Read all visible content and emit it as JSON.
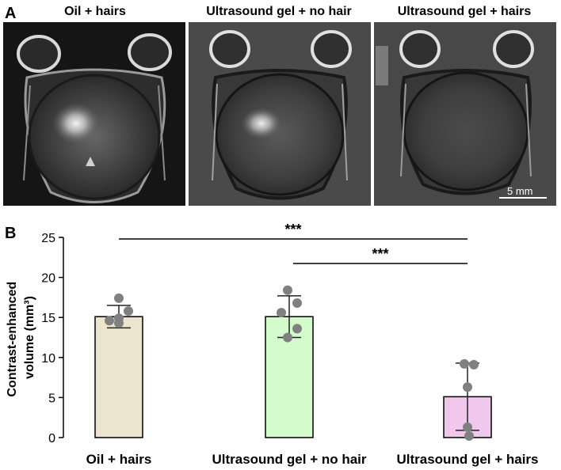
{
  "panels": {
    "a_label": "A",
    "b_label": "B"
  },
  "images": [
    {
      "title": "Oil + hairs"
    },
    {
      "title": "Ultrasound gel + no hair"
    },
    {
      "title": "Ultrasound gel + hairs"
    }
  ],
  "scalebar": {
    "label": "5 mm"
  },
  "chart_data": {
    "type": "bar",
    "categories": [
      "Oil + hairs",
      "Ultrasound gel + no hair",
      "Ultrasound gel + hairs"
    ],
    "values": [
      15.1,
      15.1,
      5.1
    ],
    "error": [
      1.4,
      2.6,
      4.2
    ],
    "points": [
      [
        17.4,
        15.8,
        14.9,
        14.6,
        14.3
      ],
      [
        18.4,
        16.8,
        15.6,
        13.6,
        12.5
      ],
      [
        9.2,
        9.1,
        6.3,
        1.3,
        0.2
      ]
    ],
    "bar_colors": [
      "#ece4cc",
      "#d3fbcc",
      "#f0c8ee"
    ],
    "point_color": "#808080",
    "ylabel_line1": "Contrast-enhanced",
    "ylabel_line2": "volume (mm³)",
    "xlabel": "",
    "ylim": [
      0,
      25
    ],
    "yticks": [
      0,
      5,
      10,
      15,
      20,
      25
    ],
    "significance": [
      {
        "from": 0,
        "to": 2,
        "label": "***"
      },
      {
        "from": 1,
        "to": 2,
        "label": "***"
      }
    ]
  }
}
